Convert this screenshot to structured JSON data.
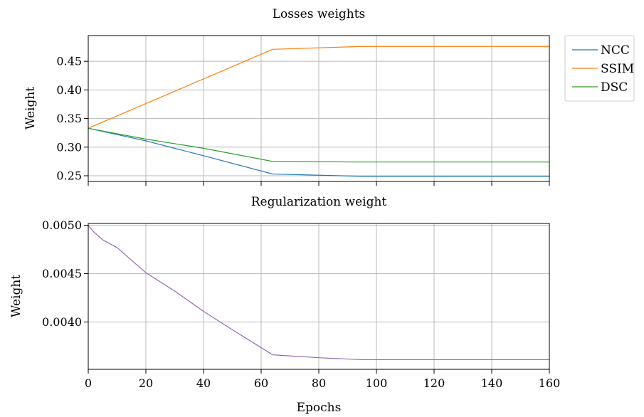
{
  "chart_data": [
    {
      "type": "line",
      "title": "Losses weights",
      "xlabel": "",
      "ylabel": "Weight",
      "xlim": [
        0,
        160
      ],
      "ylim": [
        0.24,
        0.495
      ],
      "xticks": [
        0,
        20,
        40,
        60,
        80,
        100,
        120,
        140,
        160
      ],
      "yticks": [
        0.25,
        0.3,
        0.35,
        0.4,
        0.45
      ],
      "ytick_labels": [
        "0.25",
        "0.30",
        "0.35",
        "0.40",
        "0.45"
      ],
      "grid": true,
      "legend": "outside-top-right",
      "series": [
        {
          "name": "NCC",
          "color": "#1f77b4",
          "x": [
            0,
            20,
            40,
            64,
            95,
            120,
            160
          ],
          "y": [
            0.333,
            0.311,
            0.285,
            0.253,
            0.249,
            0.249,
            0.249
          ]
        },
        {
          "name": "SSIM",
          "color": "#ff7f0e",
          "x": [
            0,
            64,
            95,
            120,
            160
          ],
          "y": [
            0.333,
            0.471,
            0.476,
            0.476,
            0.476
          ]
        },
        {
          "name": "DSC",
          "color": "#2ca02c",
          "x": [
            0,
            20,
            40,
            64,
            95,
            120,
            160
          ],
          "y": [
            0.333,
            0.314,
            0.298,
            0.275,
            0.274,
            0.274,
            0.274
          ]
        }
      ]
    },
    {
      "type": "line",
      "title": "Regularization weight",
      "xlabel": "Epochs",
      "ylabel": "Weight",
      "xlim": [
        0,
        160
      ],
      "ylim": [
        0.00351,
        0.00502
      ],
      "xticks": [
        0,
        20,
        40,
        60,
        80,
        100,
        120,
        140,
        160
      ],
      "xtick_labels": [
        "0",
        "20",
        "40",
        "60",
        "80",
        "100",
        "120",
        "140",
        "160"
      ],
      "yticks": [
        0.004,
        0.0045,
        0.005
      ],
      "ytick_labels": [
        "0.0040",
        "0.0045",
        "0.0050"
      ],
      "grid": true,
      "series": [
        {
          "color": "#9467bd",
          "x": [
            0,
            2,
            5,
            10,
            20,
            30,
            40,
            50,
            64,
            80,
            95,
            120,
            160
          ],
          "y": [
            0.005,
            0.00493,
            0.00485,
            0.00477,
            0.00451,
            0.00432,
            0.00411,
            0.00392,
            0.00366,
            0.00363,
            0.00361,
            0.00361,
            0.00361
          ]
        }
      ]
    }
  ]
}
